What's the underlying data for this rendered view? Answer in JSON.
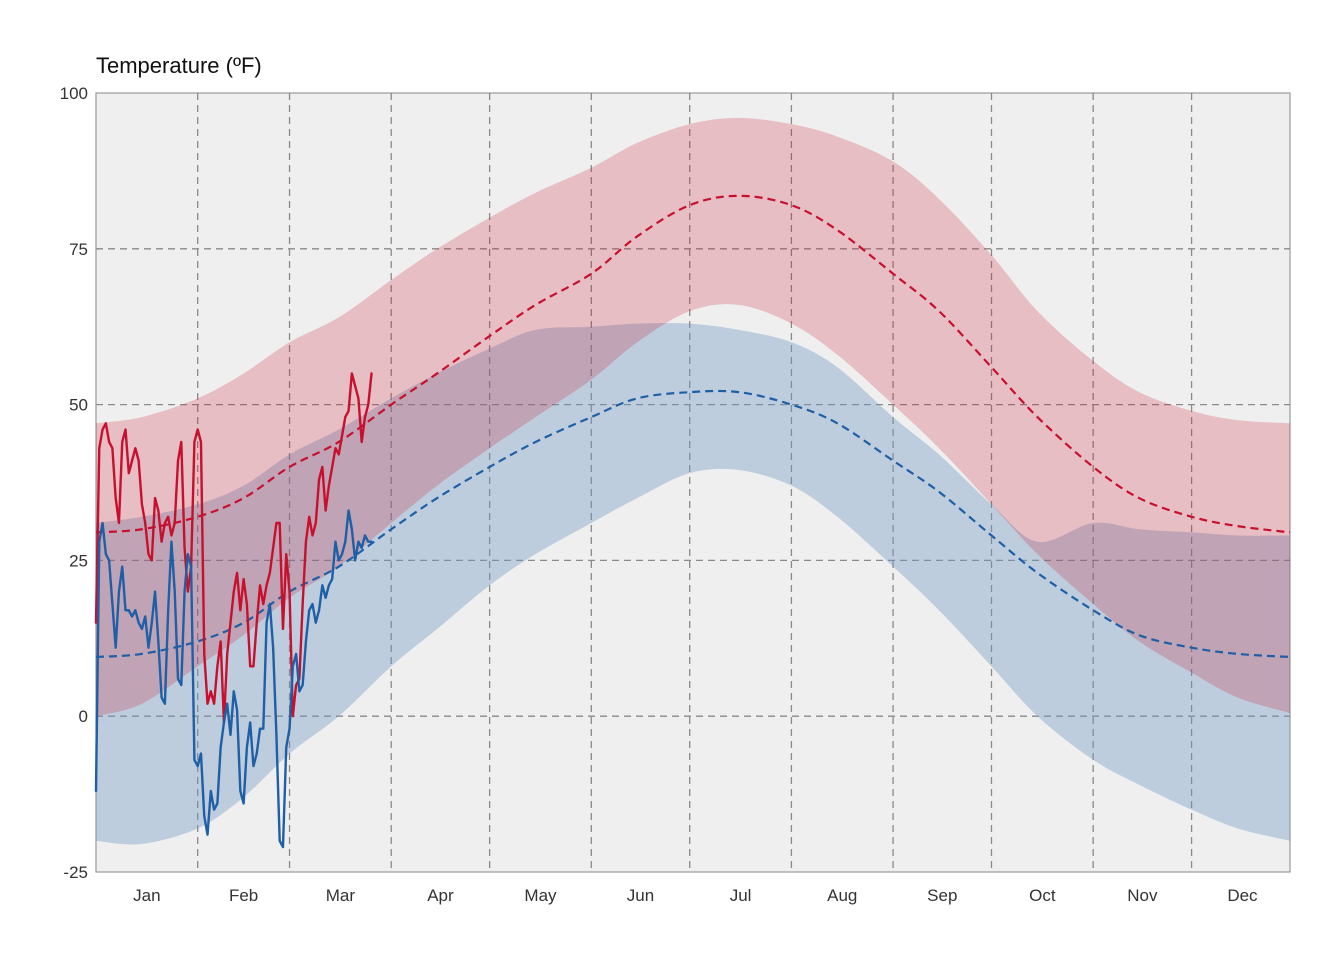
{
  "chart_data": {
    "type": "line",
    "title": "",
    "ylabel": "Temperature (ºF)",
    "xlabel": "",
    "ylim": [
      -25,
      100
    ],
    "xlim_day_of_year": [
      1,
      365
    ],
    "yticks": [
      -25,
      0,
      25,
      50,
      75,
      100
    ],
    "grid": true,
    "months": [
      "Jan",
      "Feb",
      "Mar",
      "Apr",
      "May",
      "Jun",
      "Jul",
      "Aug",
      "Sep",
      "Oct",
      "Nov",
      "Dec"
    ],
    "colors": {
      "high": "#c8102e",
      "low": "#1f5fa6",
      "high_band": "#c8102e",
      "low_band": "#6f96c0",
      "background": "#efefef",
      "grid": "#8a8a8a"
    },
    "normal_bands": {
      "x_day": [
        1,
        15,
        32,
        46,
        60,
        75,
        91,
        105,
        121,
        135,
        152,
        166,
        182,
        197,
        213,
        227,
        244,
        258,
        274,
        288,
        305,
        319,
        335,
        349,
        365
      ],
      "high_normal": [
        29.5,
        30,
        32,
        35,
        40,
        44,
        50,
        55,
        61,
        66,
        71,
        77,
        82,
        83.5,
        82,
        78,
        71,
        65,
        56,
        48,
        40,
        35,
        32,
        30.5,
        29.5
      ],
      "high_upper": [
        47,
        48,
        51,
        55,
        60,
        64,
        70,
        75,
        80,
        84,
        88,
        92,
        95,
        96,
        95,
        93,
        89,
        83,
        74,
        65,
        57,
        52,
        49,
        47.5,
        47
      ],
      "high_lower": [
        0,
        2,
        8,
        13,
        19,
        24,
        31,
        37,
        43,
        48,
        54,
        60,
        65,
        66,
        63,
        58,
        50,
        43,
        34,
        26,
        18,
        12,
        7,
        3,
        0.5
      ],
      "low_normal": [
        9.5,
        10,
        12,
        15,
        20,
        24,
        30,
        35,
        40,
        44,
        48,
        51,
        52,
        52,
        50,
        47,
        41,
        36,
        29,
        23,
        17,
        13,
        11,
        10,
        9.5
      ],
      "low_upper": [
        31,
        32,
        34,
        37,
        42,
        46,
        51,
        55,
        59,
        62,
        62.5,
        63,
        63,
        62,
        60,
        56,
        48,
        42,
        34,
        28,
        31,
        30,
        29.5,
        29,
        29
      ],
      "low_lower": [
        -20,
        -20.5,
        -18,
        -13,
        -6,
        0,
        8,
        14,
        21,
        26,
        31,
        35,
        39,
        39.5,
        37,
        32,
        24,
        17,
        8,
        0,
        -7,
        -11,
        -15,
        -18,
        -20
      ]
    },
    "series": [
      {
        "name": "",
        "role": "daily high",
        "x_day": [
          1,
          2,
          3,
          4,
          5,
          6,
          7,
          8,
          9,
          10,
          11,
          12,
          13,
          14,
          15,
          16,
          17,
          18,
          19,
          20,
          21,
          22,
          23,
          24,
          25,
          26,
          27,
          28,
          29,
          30,
          31,
          32,
          33,
          34,
          35,
          36,
          37,
          38,
          39,
          40,
          41,
          42,
          43,
          44,
          45,
          46,
          47,
          48,
          49,
          50,
          51,
          52,
          53,
          54,
          55,
          56,
          57,
          58,
          59,
          60,
          61,
          62,
          63,
          64,
          65,
          66,
          67,
          68,
          69,
          70,
          71,
          72,
          73,
          74,
          75,
          76,
          77,
          78,
          79,
          80,
          81,
          82,
          83,
          84,
          85
        ],
        "values": [
          15,
          43,
          46,
          47,
          44,
          43,
          35,
          31,
          44,
          46,
          39,
          41,
          43,
          41,
          34,
          31,
          26,
          25,
          35,
          33,
          28,
          31,
          32,
          29,
          31,
          41,
          44,
          27,
          20,
          24,
          44,
          46,
          44,
          10,
          2,
          4,
          2,
          8,
          12,
          -1,
          10,
          15,
          20,
          23,
          17,
          22,
          18,
          8,
          8,
          15,
          21,
          18,
          21,
          23,
          27,
          31,
          31,
          14,
          26,
          20,
          0,
          5,
          6,
          18,
          28,
          32,
          29,
          31,
          38,
          40,
          33,
          37,
          40,
          43,
          42,
          45,
          48,
          49,
          55,
          53,
          51,
          44,
          48,
          50,
          55
        ]
      },
      {
        "name": "",
        "role": "daily low",
        "x_day": [
          1,
          2,
          3,
          4,
          5,
          6,
          7,
          8,
          9,
          10,
          11,
          12,
          13,
          14,
          15,
          16,
          17,
          18,
          19,
          20,
          21,
          22,
          23,
          24,
          25,
          26,
          27,
          28,
          29,
          30,
          31,
          32,
          33,
          34,
          35,
          36,
          37,
          38,
          39,
          40,
          41,
          42,
          43,
          44,
          45,
          46,
          47,
          48,
          49,
          50,
          51,
          52,
          53,
          54,
          55,
          56,
          57,
          58,
          59,
          60,
          61,
          62,
          63,
          64,
          65,
          66,
          67,
          68,
          69,
          70,
          71,
          72,
          73,
          74,
          75,
          76,
          77,
          78,
          79,
          80,
          81,
          82,
          83,
          84,
          85
        ],
        "values": [
          -12,
          28,
          31,
          26,
          25,
          18,
          11,
          20,
          24,
          17,
          17,
          16,
          17,
          15,
          14,
          16,
          11,
          15,
          20,
          12,
          3,
          2,
          17,
          28,
          20,
          6,
          5,
          20,
          26,
          24,
          -7,
          -8,
          -6,
          -16,
          -19,
          -12,
          -15,
          -14,
          -5,
          -1,
          2,
          -3,
          4,
          1,
          -12,
          -14,
          -5,
          -1,
          -8,
          -6,
          -2,
          -2,
          15,
          18,
          11,
          -3,
          -20,
          -21,
          -5,
          -2,
          8,
          10,
          4,
          5,
          12,
          17,
          18,
          15,
          17,
          21,
          19,
          21,
          22,
          28,
          25,
          26,
          28,
          33,
          30,
          25,
          28,
          27,
          29,
          28,
          28
        ]
      }
    ]
  }
}
